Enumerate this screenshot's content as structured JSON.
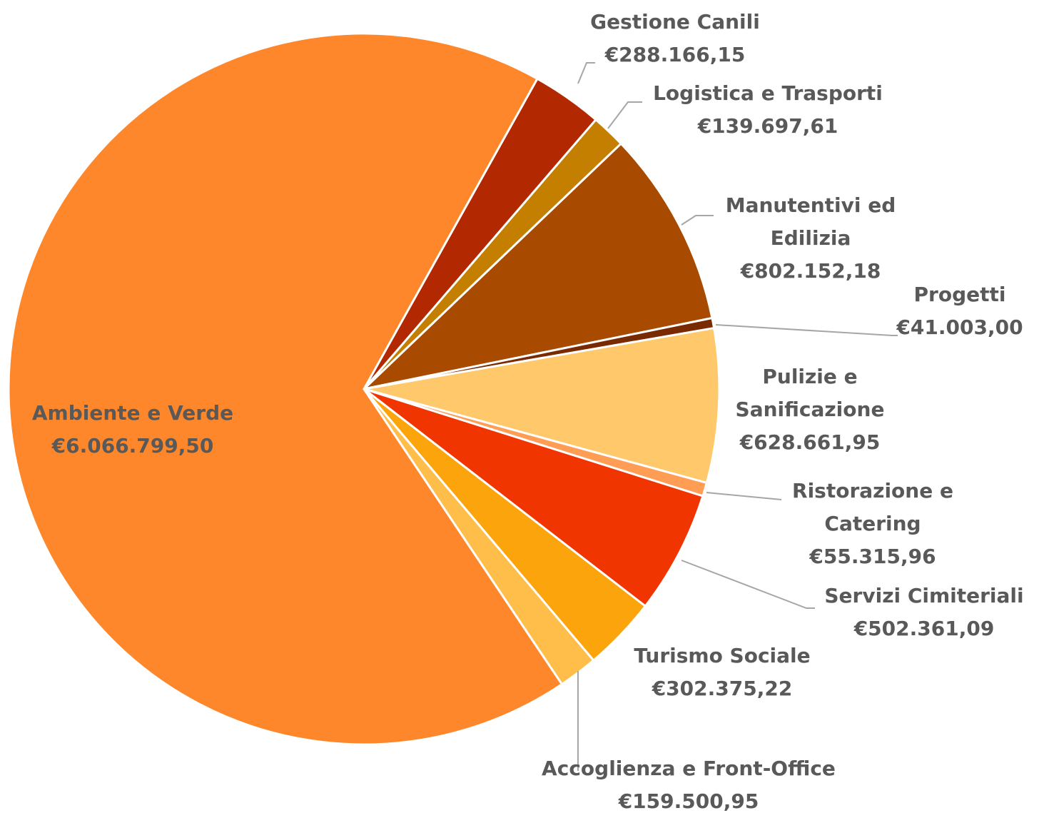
{
  "chart_data": {
    "type": "pie",
    "categories": [
      "Gestione Canili",
      "Logistica e Trasporti",
      "Manutentivi ed Edilizia",
      "Progetti",
      "Pulizie e Sanificazione",
      "Ristorazione e Catering",
      "Servizi Cimiteriali",
      "Turismo Sociale",
      "Accoglienza e Front-Office",
      "Ambiente e Verde"
    ],
    "values": [
      288166.15,
      139697.61,
      802152.18,
      41003.0,
      628661.95,
      55315.96,
      502361.09,
      302375.22,
      159500.95,
      6066799.5
    ],
    "value_labels": [
      "€288.166,15",
      "€139.697,61",
      "€802.152,18",
      "€41.003,00",
      "€628.661,95",
      "€55.315,96",
      "€502.361,09",
      "€302.375,22",
      "€159.500,95",
      "€6.066.799,50"
    ],
    "colors": [
      "#b22800",
      "#c47f00",
      "#a84a00",
      "#7a2a00",
      "#ffc96b",
      "#ff9d55",
      "#f03500",
      "#fba40c",
      "#ffbe4a",
      "#fd872a"
    ]
  }
}
